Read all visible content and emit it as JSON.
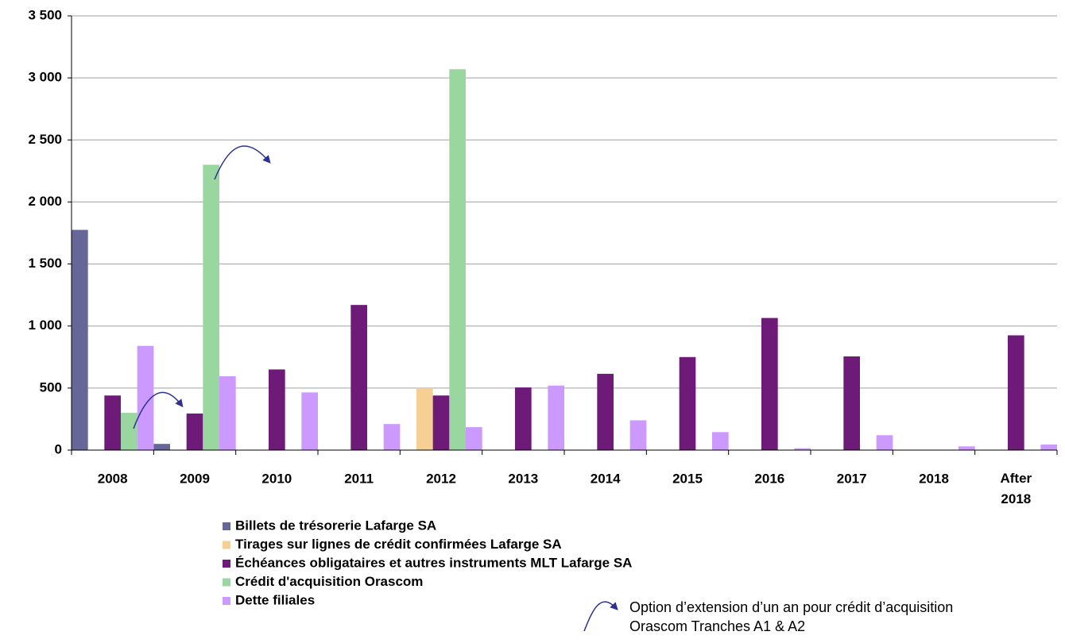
{
  "chart_data": {
    "type": "bar",
    "categories": [
      "2008",
      "2009",
      "2010",
      "2011",
      "2012",
      "2013",
      "2014",
      "2015",
      "2016",
      "2017",
      "2018",
      "After 2018"
    ],
    "series": [
      {
        "name": "Billets de trésorerie Lafarge SA",
        "color": "#666699",
        "values": [
          1775,
          50,
          null,
          null,
          null,
          null,
          null,
          null,
          null,
          null,
          null,
          null
        ]
      },
      {
        "name": "Tirages sur lignes de crédit confirmées Lafarge SA",
        "color": "#f5cf93",
        "values": [
          null,
          null,
          null,
          null,
          500,
          null,
          null,
          null,
          null,
          null,
          null,
          null
        ]
      },
      {
        "name": "Échéances obligataires et autres instruments MLT Lafarge SA",
        "color": "#6e1a78",
        "values": [
          440,
          295,
          650,
          1170,
          440,
          505,
          615,
          750,
          1065,
          755,
          null,
          925
        ]
      },
      {
        "name": "Crédit d'acquisition Orascom",
        "color": "#99d6a0",
        "values": [
          300,
          2300,
          null,
          null,
          3070,
          null,
          null,
          null,
          null,
          null,
          null,
          null
        ]
      },
      {
        "name": "Dette filiales",
        "color": "#cc99ff",
        "values": [
          840,
          595,
          465,
          210,
          185,
          520,
          240,
          145,
          15,
          120,
          30,
          45
        ]
      }
    ],
    "ylim": [
      0,
      3500
    ],
    "yticks": [
      0,
      500,
      {
        "value": 1000,
        "label": "1 000"
      },
      {
        "value": 1500,
        "label": "1 500"
      },
      {
        "value": 2000,
        "label": "2 000"
      },
      {
        "value": 2500,
        "label": "2 500"
      },
      {
        "value": 3000,
        "label": "3 000"
      },
      {
        "value": 3500,
        "label": "3 500"
      }
    ],
    "grid": true,
    "annotation": [
      "Option d’extension d’un an pour crédit d’acquisition",
      "Orascom Tranches A1 & A2"
    ]
  }
}
